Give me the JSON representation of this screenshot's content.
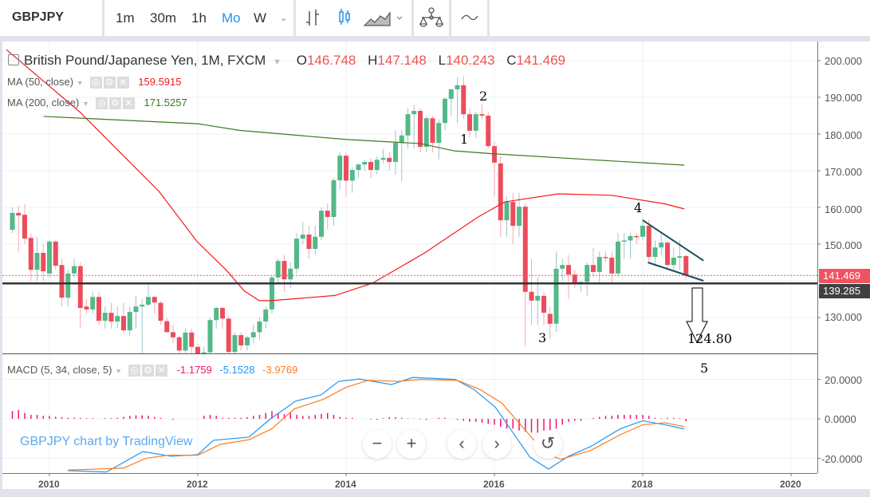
{
  "toolbar": {
    "symbol": "GBPJPY",
    "intervals": [
      "1m",
      "30m",
      "1h",
      "Mo",
      "W"
    ],
    "active_interval": "Mo",
    "accent": "#2196f3"
  },
  "legend": {
    "title": "British Pound/Japanese Yen, 1M, FXCM",
    "o_label": "O",
    "o": "146.748",
    "h_label": "H",
    "h": "147.148",
    "l_label": "L",
    "l": "140.243",
    "c_label": "C",
    "c": "141.469",
    "ma50": {
      "label": "MA (50, close)",
      "value": "159.5915",
      "color": "#f21b1b"
    },
    "ma200": {
      "label": "MA (200, close)",
      "value": "171.5257",
      "color": "#3c7a1e"
    },
    "macd": {
      "label": "MACD (5, 34, close, 5)",
      "hist": "-1.1759",
      "macd": "-5.1528",
      "signal": "-3.9769",
      "hist_color": "#f0166d",
      "macd_color": "#2196f3",
      "signal_color": "#ff7b1c"
    }
  },
  "watermark": "GBPJPY chart by TradingView",
  "price_axis": [
    "200.000",
    "190.000",
    "180.000",
    "170.000",
    "160.000",
    "150.000",
    "130.000"
  ],
  "macd_axis": [
    "20.0000",
    "0.0000",
    "-20.0000"
  ],
  "time_axis": [
    "2010",
    "2012",
    "2014",
    "2016",
    "2018",
    "2020"
  ],
  "last_price": "141.469",
  "support_price": "139.285",
  "annotations": {
    "w1": "1",
    "w2": "2",
    "w3": "3",
    "w4": "4",
    "w5": "5",
    "target": "124.80"
  },
  "chart_data": {
    "type": "candlestick",
    "start": "2009-07",
    "interval": "1M",
    "up_color": "#53b987",
    "down_color": "#eb4d5c",
    "ylim": [
      120,
      205
    ],
    "xlim": [
      2009.4,
      2020.4
    ],
    "candles": [
      [
        153.9,
        160,
        153,
        158.5
      ],
      [
        158.5,
        160.5,
        148,
        157.8
      ],
      [
        158,
        161,
        150,
        151.5
      ],
      [
        151.7,
        153,
        140,
        143
      ],
      [
        143,
        152,
        140,
        147.6
      ],
      [
        147.6,
        150,
        140,
        142.6
      ],
      [
        142,
        151,
        141,
        150.7
      ],
      [
        150.7,
        151,
        143,
        144.1
      ],
      [
        144.3,
        146,
        133,
        135.4
      ],
      [
        135.4,
        143,
        133,
        142
      ],
      [
        142,
        146,
        141,
        144
      ],
      [
        144,
        145,
        127,
        132.6
      ],
      [
        133,
        135,
        131,
        132.2
      ],
      [
        132.2,
        137,
        131,
        135.6
      ],
      [
        135.6,
        137,
        128,
        129.1
      ],
      [
        129.1,
        133,
        127,
        131.3
      ],
      [
        131.3,
        134,
        127,
        128.9
      ],
      [
        128.9,
        133,
        127,
        130.4
      ],
      [
        130.4,
        134,
        126,
        126.5
      ],
      [
        126.5,
        133,
        125,
        131.5
      ],
      [
        131.5,
        136,
        127,
        133
      ],
      [
        133,
        135,
        120,
        133.5
      ],
      [
        133.5,
        139,
        133,
        135.6
      ],
      [
        135.6,
        136,
        131,
        134.1
      ],
      [
        134,
        134.5,
        128,
        129.1
      ],
      [
        129,
        130,
        126,
        126
      ],
      [
        126,
        128,
        123,
        124.6
      ],
      [
        124.6,
        125,
        117,
        121
      ],
      [
        121,
        127,
        119,
        125.9
      ],
      [
        125.9,
        127,
        120,
        122
      ],
      [
        122,
        123,
        117,
        119.5
      ],
      [
        119.5,
        122,
        118,
        120.5
      ],
      [
        120.5,
        130,
        119,
        129.3
      ],
      [
        129.3,
        133,
        127,
        132.6
      ],
      [
        132.6,
        133,
        127,
        129.7
      ],
      [
        129.7,
        130.5,
        118,
        120.6
      ],
      [
        120.6,
        126,
        119,
        125.2
      ],
      [
        125.2,
        126,
        121,
        122.4
      ],
      [
        122.4,
        125,
        121,
        124.6
      ],
      [
        124.6,
        128,
        123,
        126
      ],
      [
        126,
        130,
        124,
        128.9
      ],
      [
        128.9,
        133,
        127,
        132.2
      ],
      [
        132.2,
        141.5,
        131,
        140.9
      ],
      [
        140.9,
        146,
        139,
        145.4
      ],
      [
        145.4,
        147,
        137,
        140.4
      ],
      [
        140.4,
        145,
        138,
        143.3
      ],
      [
        143.3,
        153,
        142,
        151.5
      ],
      [
        151.5,
        156,
        150,
        152.6
      ],
      [
        152.6,
        155,
        146,
        148.7
      ],
      [
        148.7,
        155,
        147,
        152
      ],
      [
        152,
        160,
        151,
        159.1
      ],
      [
        159.1,
        161,
        154,
        157.4
      ],
      [
        157.4,
        168,
        155,
        167.4
      ],
      [
        167.4,
        175,
        165,
        174.1
      ],
      [
        174.1,
        175,
        163,
        167.3
      ],
      [
        167.3,
        171,
        164,
        170.2
      ],
      [
        170.2,
        172,
        168,
        171.7
      ],
      [
        171.7,
        173,
        170,
        172.4
      ],
      [
        172.4,
        173.5,
        168,
        170.2
      ],
      [
        170.2,
        174,
        169,
        173
      ],
      [
        173,
        176,
        172,
        173.5
      ],
      [
        173.5,
        175,
        170,
        172.4
      ],
      [
        172.4,
        181,
        169,
        177.6
      ],
      [
        177.6,
        181,
        167,
        179.6
      ],
      [
        179.6,
        187,
        176,
        185.4
      ],
      [
        185.4,
        188,
        176,
        186.3
      ],
      [
        186.3,
        187,
        175,
        176.5
      ],
      [
        176.5,
        185,
        175,
        184.3
      ],
      [
        184.3,
        185,
        175,
        177.6
      ],
      [
        177.6,
        184,
        173,
        183
      ],
      [
        183,
        190,
        181,
        189.6
      ],
      [
        189.6,
        192,
        185,
        192.2
      ],
      [
        192.2,
        195.5,
        183,
        193.3
      ],
      [
        193.3,
        195.8,
        184,
        185.4
      ],
      [
        185.4,
        187,
        179,
        180.9
      ],
      [
        180.9,
        186,
        179,
        185.4
      ],
      [
        185.4,
        188,
        184,
        185
      ],
      [
        185,
        186,
        176,
        176.7
      ],
      [
        176.7,
        178,
        163,
        172.2
      ],
      [
        172,
        174,
        152,
        156.5
      ],
      [
        156.5,
        163,
        152,
        161.5
      ],
      [
        161.5,
        164,
        150,
        155
      ],
      [
        155,
        164,
        152,
        160.2
      ],
      [
        160.2,
        161,
        122,
        137
      ],
      [
        137,
        146,
        128,
        134.6
      ],
      [
        134.6,
        141,
        128,
        135.9
      ],
      [
        135.9,
        137,
        128,
        131.3
      ],
      [
        131,
        133,
        124,
        128.3
      ],
      [
        128.3,
        148,
        126,
        143.3
      ],
      [
        143.3,
        146,
        140,
        144.3
      ],
      [
        144.3,
        147,
        135,
        141.7
      ],
      [
        141.7,
        143,
        138,
        139.3
      ],
      [
        139.3,
        140,
        137,
        139.7
      ],
      [
        139.7,
        145,
        136,
        144.3
      ],
      [
        144.3,
        149,
        141,
        142.4
      ],
      [
        142.4,
        148,
        139,
        146.5
      ],
      [
        146.5,
        148,
        145,
        146.3
      ],
      [
        146.3,
        148,
        139,
        142
      ],
      [
        142,
        153,
        141,
        150.7
      ],
      [
        150.7,
        153,
        146,
        151
      ],
      [
        151,
        153,
        146,
        152.2
      ],
      [
        152.2,
        153,
        150,
        152
      ],
      [
        152,
        157,
        151,
        155
      ],
      [
        155,
        156.6,
        145,
        146.5
      ],
      [
        146.5,
        151,
        144,
        149.1
      ],
      [
        149.1,
        153,
        147,
        150.4
      ],
      [
        150.4,
        151,
        143,
        144.3
      ],
      [
        144.3,
        149,
        143,
        146.3
      ],
      [
        146.3,
        151,
        143,
        146.7
      ],
      [
        146.748,
        147.148,
        140.243,
        141.469
      ]
    ],
    "ma50": [
      [
        2009.42,
        203
      ],
      [
        2010.41,
        186
      ],
      [
        2011.48,
        164.3
      ],
      [
        2011.99,
        150.7
      ],
      [
        2012.38,
        143
      ],
      [
        2012.63,
        137.2
      ],
      [
        2012.83,
        134.6
      ],
      [
        2012.99,
        134.6
      ],
      [
        2013.85,
        136
      ],
      [
        2014.35,
        139.3
      ],
      [
        2015.06,
        147.6
      ],
      [
        2015.78,
        157.4
      ],
      [
        2016.14,
        161.5
      ],
      [
        2016.86,
        163.7
      ],
      [
        2017.58,
        163.3
      ],
      [
        2018.29,
        161
      ],
      [
        2018.56,
        159.5915
      ]
    ],
    "ma200": [
      [
        2009.92,
        184.8
      ],
      [
        2012.0,
        182.8
      ],
      [
        2012.56,
        181
      ],
      [
        2014.01,
        178.5
      ],
      [
        2015.0,
        177.4
      ],
      [
        2015.46,
        175.4
      ],
      [
        2016.0,
        174.6
      ],
      [
        2017.3,
        173
      ],
      [
        2018.56,
        171.5257
      ]
    ],
    "macd": [
      [
        2010.25,
        -26.3
      ],
      [
        2010.77,
        -27
      ],
      [
        2011.26,
        -16.6
      ],
      [
        2011.64,
        -19
      ],
      [
        2012.0,
        -18.2
      ],
      [
        2012.21,
        -10.9
      ],
      [
        2012.69,
        -9.3
      ],
      [
        2012.98,
        0
      ],
      [
        2013.32,
        9
      ],
      [
        2013.66,
        12.1
      ],
      [
        2013.9,
        19
      ],
      [
        2014.18,
        20.2
      ],
      [
        2014.61,
        17.4
      ],
      [
        2014.9,
        21
      ],
      [
        2015.47,
        20
      ],
      [
        2015.72,
        15
      ],
      [
        2016.01,
        6
      ],
      [
        2016.25,
        -7
      ],
      [
        2016.48,
        -19.5
      ],
      [
        2016.73,
        -25.5
      ],
      [
        2017.0,
        -19
      ],
      [
        2017.3,
        -14
      ],
      [
        2017.7,
        -5
      ],
      [
        2018.0,
        -1
      ],
      [
        2018.3,
        -3
      ],
      [
        2018.56,
        -5.1528
      ]
    ],
    "signal": [
      [
        2010.25,
        -26
      ],
      [
        2011.0,
        -25
      ],
      [
        2011.3,
        -20
      ],
      [
        2011.6,
        -18.5
      ],
      [
        2012.0,
        -18.5
      ],
      [
        2012.3,
        -13
      ],
      [
        2012.7,
        -10.5
      ],
      [
        2013.0,
        -5
      ],
      [
        2013.3,
        5
      ],
      [
        2013.7,
        10
      ],
      [
        2014.0,
        16
      ],
      [
        2014.3,
        19.5
      ],
      [
        2014.7,
        19
      ],
      [
        2015.0,
        20
      ],
      [
        2015.5,
        19.5
      ],
      [
        2015.8,
        15
      ],
      [
        2016.1,
        8
      ],
      [
        2016.4,
        -5
      ],
      [
        2016.7,
        -18
      ],
      [
        2016.9,
        -20.5
      ],
      [
        2017.3,
        -16
      ],
      [
        2017.7,
        -8
      ],
      [
        2018.0,
        -3
      ],
      [
        2018.3,
        -2
      ],
      [
        2018.56,
        -3.9769
      ]
    ],
    "histogram": [
      4,
      4.5,
      3,
      2,
      2,
      1.5,
      1.5,
      1,
      0.8,
      0.5,
      0.6,
      0.5,
      0.3,
      0.3,
      0,
      0.3,
      0.3,
      0.5,
      1,
      1.5,
      1.8,
      1.8,
      1.5,
      1,
      0.5,
      0,
      -0.5,
      0,
      0,
      0,
      0,
      1.5,
      2,
      1.5,
      0.5,
      0.5,
      0.5,
      0.5,
      0.8,
      1.5,
      2,
      3,
      4,
      3,
      2.5,
      3,
      2,
      1.5,
      1.5,
      2,
      2.5,
      3,
      2,
      1,
      0.5,
      0.5,
      0,
      0,
      -0.3,
      -0.5,
      0.3,
      0.8,
      0.8,
      0.5,
      0.2,
      0.1,
      -0.3,
      -0.5,
      0,
      0.5,
      0.5,
      0,
      -0.5,
      -1,
      -1.5,
      -1.5,
      -2,
      -2.5,
      -3,
      -4,
      -5,
      -5,
      -6,
      -6.5,
      -7,
      -7,
      -6.5,
      -6,
      -5,
      -3,
      -1.5,
      -1,
      -1,
      0,
      0.5,
      1,
      1.5,
      1.5,
      2,
      2,
      2,
      2,
      2,
      1.5,
      0.5,
      0.3,
      0.5,
      0.5,
      0.3,
      -1.1759
    ],
    "support_level": 139.285,
    "target": 124.8,
    "wedge": {
      "upper": [
        [
          2018.0,
          156.5
        ],
        [
          2018.82,
          145.5
        ]
      ],
      "lower": [
        [
          2018.07,
          145
        ],
        [
          2018.82,
          140
        ]
      ]
    }
  }
}
